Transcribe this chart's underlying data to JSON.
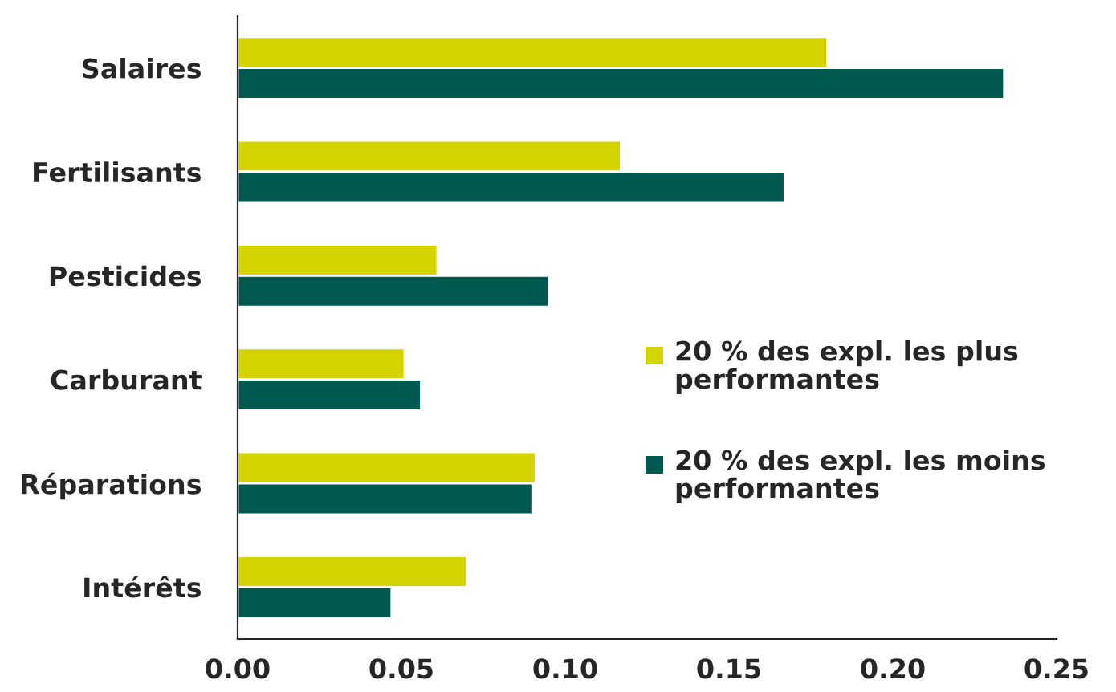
{
  "chart_data": {
    "type": "bar",
    "orientation": "horizontal",
    "categories": [
      "Salaires",
      "Fertilisants",
      "Pesticides",
      "Carburant",
      "Réparations",
      "Intérêts"
    ],
    "series": [
      {
        "name": "20 % des expl. les plus performantes",
        "color": "#d4d400",
        "values": [
          0.18,
          0.117,
          0.061,
          0.051,
          0.091,
          0.07
        ]
      },
      {
        "name": "20 % des expl. les moins performantes",
        "color": "#00594f",
        "values": [
          0.234,
          0.167,
          0.095,
          0.056,
          0.09,
          0.047
        ]
      }
    ],
    "xlim": [
      0,
      0.25
    ],
    "xticks": [
      {
        "value": 0,
        "label": "0.00"
      },
      {
        "value": 0.05,
        "label": "0.05"
      },
      {
        "value": 0.1,
        "label": "0.10"
      },
      {
        "value": 0.15,
        "label": "0.15"
      },
      {
        "value": 0.2,
        "label": "0.20"
      },
      {
        "value": 0.25,
        "label": "0.25"
      }
    ],
    "grid": false,
    "legend": "right"
  }
}
